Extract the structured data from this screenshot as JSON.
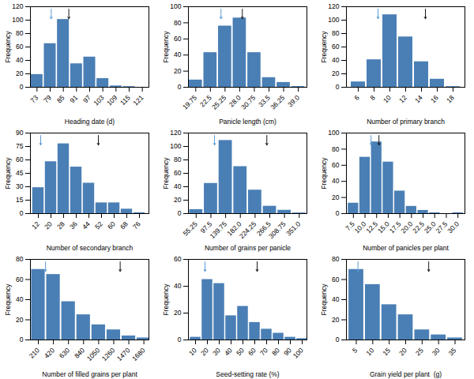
{
  "chart_data": [
    {
      "type": "bar",
      "xlabel": "Heading date (d)",
      "ylabel": "Frequency",
      "x": [
        73,
        79,
        85,
        91,
        97,
        103,
        109,
        115,
        121
      ],
      "values": [
        19,
        65,
        101,
        35,
        45,
        13,
        2,
        1,
        0
      ],
      "color": "#4a7fb5",
      "grid": false,
      "xlim": [
        70,
        124
      ],
      "ylim": [
        0,
        120
      ],
      "xticks": [
        73,
        79,
        85,
        91,
        97,
        103,
        109,
        115,
        121
      ],
      "yticks": [
        0,
        20,
        40,
        60,
        80,
        100,
        120
      ],
      "arrows": [
        {
          "x": 79.5,
          "y_start": 116.4,
          "y_end": 102,
          "color": "#5b9bd5"
        },
        {
          "x": 87.5,
          "y_start": 116.4,
          "y_end": 102,
          "color": "#1a1a1a"
        }
      ]
    },
    {
      "type": "bar",
      "xlabel": "Panicle length (cm)",
      "ylabel": "Frequency",
      "x": [
        19.75,
        22.5,
        25.25,
        28.0,
        30.75,
        33.5,
        36.25,
        39.0
      ],
      "values": [
        9,
        43,
        76,
        86,
        43,
        12,
        6,
        1
      ],
      "color": "#4a7fb5",
      "grid": false,
      "xlim": [
        18.375,
        40.625
      ],
      "ylim": [
        0,
        100
      ],
      "xticks": [
        19.75,
        22.5,
        25.25,
        {
          "value": 28,
          "label": "28.0"
        },
        30.75,
        33.5,
        36.25,
        {
          "value": 39,
          "label": "39.0"
        }
      ],
      "yticks": [
        0,
        20,
        40,
        60,
        80,
        100
      ],
      "arrows": [
        {
          "x": 24.5,
          "y_start": 97,
          "y_end": 85,
          "color": "#5b9bd5"
        },
        {
          "x": 28.5,
          "y_start": 97,
          "y_end": 85,
          "color": "#1a1a1a"
        }
      ]
    },
    {
      "type": "bar",
      "xlabel": "Number of primary branch",
      "ylabel": "Frequency",
      "x": [
        6,
        8,
        10,
        12,
        14,
        16,
        18
      ],
      "values": [
        8,
        41,
        108,
        75,
        38,
        12,
        1
      ],
      "color": "#4a7fb5",
      "grid": false,
      "xlim": [
        4.5,
        19.5
      ],
      "ylim": [
        0,
        120
      ],
      "xticks": [
        6,
        8,
        10,
        12,
        14,
        16,
        18
      ],
      "yticks": [
        0,
        20,
        40,
        60,
        80,
        100,
        120
      ],
      "arrows": [
        {
          "x": 8.5,
          "y_start": 116.4,
          "y_end": 102,
          "color": "#5b9bd5"
        },
        {
          "x": 14.5,
          "y_start": 116.4,
          "y_end": 102,
          "color": "#1a1a1a"
        }
      ]
    },
    {
      "type": "bar",
      "xlabel": "Number of secondary branch",
      "ylabel": "Frequency",
      "x": [
        12,
        20,
        28,
        36,
        44,
        52,
        60,
        68,
        76
      ],
      "values": [
        29,
        58,
        78,
        52,
        34,
        12,
        12,
        5,
        1
      ],
      "color": "#4a7fb5",
      "grid": false,
      "xlim": [
        7,
        82
      ],
      "ylim": [
        0,
        90
      ],
      "xticks": [
        12,
        20,
        28,
        36,
        44,
        52,
        60,
        68,
        76
      ],
      "yticks": [
        0,
        15,
        30,
        45,
        60,
        75,
        90
      ],
      "arrows": [
        {
          "x": 13.5,
          "y_start": 87.3,
          "y_end": 76.5,
          "color": "#5b9bd5"
        },
        {
          "x": 50.0,
          "y_start": 87.3,
          "y_end": 76.5,
          "color": "#1a1a1a"
        }
      ]
    },
    {
      "type": "bar",
      "xlabel": "Number of grains per panicle",
      "ylabel": "Frequency",
      "x": [
        55.25,
        97.5,
        139.75,
        182.0,
        224.25,
        266.5,
        308.75,
        351.0
      ],
      "values": [
        6,
        45,
        109,
        70,
        35,
        11,
        5,
        1
      ],
      "color": "#4a7fb5",
      "grid": false,
      "xlim": [
        33,
        373
      ],
      "ylim": [
        0,
        120
      ],
      "xticks": [
        55.25,
        97.5,
        139.75,
        {
          "value": 182,
          "label": "182.0"
        },
        224.25,
        266.5,
        308.75,
        {
          "value": 351,
          "label": "351.0"
        }
      ],
      "yticks": [
        0,
        20,
        40,
        60,
        80,
        100,
        120
      ],
      "arrows": [
        {
          "x": 108,
          "y_start": 116.4,
          "y_end": 102,
          "color": "#5b9bd5"
        },
        {
          "x": 258,
          "y_start": 116.4,
          "y_end": 102,
          "color": "#1a1a1a"
        }
      ]
    },
    {
      "type": "bar",
      "xlabel": "Number of panicles per plant",
      "ylabel": "Frequency",
      "x": [
        7.5,
        10.0,
        12.5,
        15.0,
        17.5,
        20.0,
        22.5,
        25.0,
        27.5,
        30.0
      ],
      "values": [
        13,
        70,
        89,
        64,
        28,
        9,
        4,
        1,
        0,
        1
      ],
      "color": "#4a7fb5",
      "grid": false,
      "xlim": [
        6.0,
        31.5
      ],
      "ylim": [
        0,
        100
      ],
      "xticks": [
        7.5,
        {
          "value": 10,
          "label": "10.0"
        },
        12.5,
        {
          "value": 15,
          "label": "15.0"
        },
        17.5,
        {
          "value": 20,
          "label": "20.0"
        },
        22.5,
        {
          "value": 25,
          "label": "25.0"
        },
        27.5,
        {
          "value": 30,
          "label": "30.0"
        }
      ],
      "yticks": [
        0,
        20,
        40,
        60,
        80,
        100
      ],
      "arrows": [
        {
          "x": 11.3,
          "y_start": 97,
          "y_end": 85,
          "color": "#5b9bd5"
        },
        {
          "x": 13.0,
          "y_start": 97,
          "y_end": 85,
          "color": "#1a1a1a"
        }
      ]
    },
    {
      "type": "bar",
      "xlabel": "Number of filled grains per plant",
      "ylabel": "Frequency",
      "x": [
        210,
        420,
        630,
        840,
        1050,
        1260,
        1470,
        1680
      ],
      "values": [
        70,
        65,
        38,
        25,
        15,
        10,
        4,
        2
      ],
      "color": "#4a7fb5",
      "grid": false,
      "xlim": [
        100,
        1750
      ],
      "ylim": [
        0,
        80
      ],
      "xticks": [
        210,
        420,
        630,
        840,
        1050,
        1260,
        1470,
        1680
      ],
      "yticks": [
        0,
        20,
        40,
        60,
        80
      ],
      "arrows": [
        {
          "x": 310,
          "y_start": 77.6,
          "y_end": 68,
          "color": "#5b9bd5"
        },
        {
          "x": 1350,
          "y_start": 77.6,
          "y_end": 68,
          "color": "#1a1a1a"
        }
      ]
    },
    {
      "type": "bar",
      "xlabel": "Seed-setting rate (%)",
      "ylabel": "Frequency",
      "x": [
        10,
        20,
        30,
        40,
        50,
        60,
        70,
        80,
        90,
        100
      ],
      "values": [
        2,
        45,
        42,
        18,
        25,
        13,
        8,
        5,
        2,
        1
      ],
      "color": "#4a7fb5",
      "grid": false,
      "xlim": [
        4,
        104
      ],
      "ylim": [
        0,
        60
      ],
      "xticks": [
        10,
        20,
        30,
        40,
        50,
        60,
        70,
        80,
        90,
        100
      ],
      "yticks": [
        0,
        20,
        40,
        60
      ],
      "arrows": [
        {
          "x": 18,
          "y_start": 58.2,
          "y_end": 51,
          "color": "#5b9bd5"
        },
        {
          "x": 62,
          "y_start": 58.2,
          "y_end": 51,
          "color": "#1a1a1a"
        }
      ]
    },
    {
      "type": "bar",
      "xlabel": "Grain yield per plant  (g)",
      "ylabel": "Frequency",
      "x": [
        5,
        10,
        15,
        20,
        25,
        30,
        35
      ],
      "values": [
        70,
        55,
        35,
        25,
        10,
        5,
        2
      ],
      "color": "#4a7fb5",
      "grid": false,
      "xlim": [
        2,
        38
      ],
      "ylim": [
        0,
        80
      ],
      "xticks": [
        5,
        10,
        15,
        20,
        25,
        30,
        35
      ],
      "yticks": [
        0,
        20,
        40,
        60,
        80
      ],
      "arrows": [
        {
          "x": 5.5,
          "y_start": 77.6,
          "y_end": 68,
          "color": "#5b9bd5"
        },
        {
          "x": 27,
          "y_start": 77.6,
          "y_end": 68,
          "color": "#1a1a1a"
        }
      ]
    }
  ]
}
